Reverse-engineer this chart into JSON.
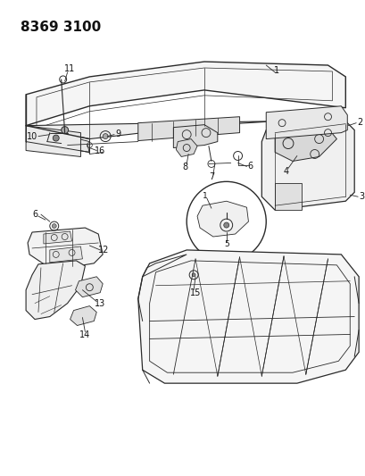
{
  "title": "8369 3100",
  "bg": "#ffffff",
  "lc": "#2a2a2a",
  "tc": "#111111",
  "fig_width": 4.1,
  "fig_height": 5.33,
  "dpi": 100
}
